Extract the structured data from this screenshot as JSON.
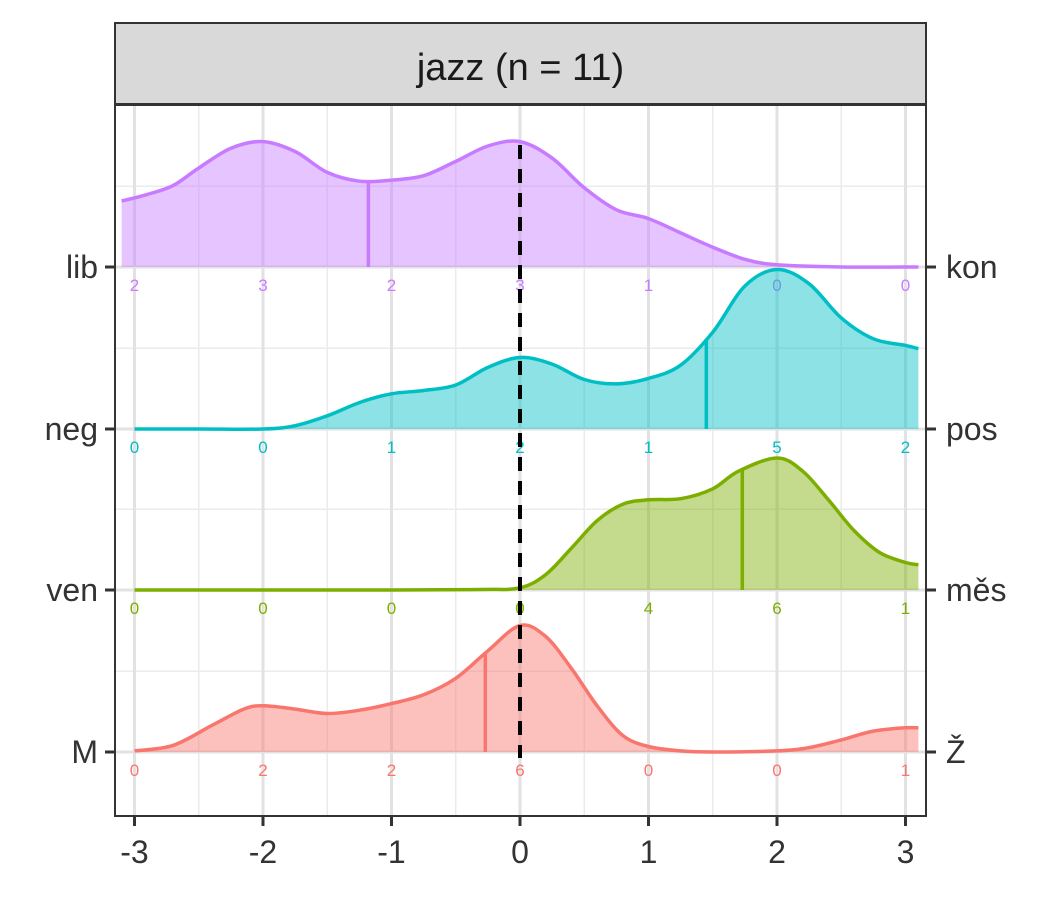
{
  "chart_data": {
    "type": "area",
    "facet_title": "jazz (n = 11)",
    "xlim": [
      -3.1,
      3.1
    ],
    "x_ticks": [
      "-3",
      "-2",
      "-1",
      "0",
      "1",
      "2",
      "3"
    ],
    "reference_line_x": 0,
    "grid": true,
    "count_positions": [
      -3,
      -2,
      -1,
      0,
      1,
      2,
      3
    ],
    "series": [
      {
        "left_label": "M",
        "right_label": "Ž",
        "color": "#F8766D",
        "mean_line": -0.27,
        "counts": [
          "0",
          "2",
          "2",
          "6",
          "0",
          "0",
          "1"
        ],
        "density": [
          [
            -3.0,
            0.01
          ],
          [
            -2.7,
            0.06
          ],
          [
            -2.4,
            0.24
          ],
          [
            -2.15,
            0.39
          ],
          [
            -2.0,
            0.42
          ],
          [
            -1.75,
            0.39
          ],
          [
            -1.5,
            0.35
          ],
          [
            -1.25,
            0.38
          ],
          [
            -1.0,
            0.44
          ],
          [
            -0.75,
            0.52
          ],
          [
            -0.5,
            0.67
          ],
          [
            -0.25,
            0.92
          ],
          [
            0.0,
            1.15
          ],
          [
            0.2,
            1.05
          ],
          [
            0.4,
            0.76
          ],
          [
            0.6,
            0.42
          ],
          [
            0.8,
            0.15
          ],
          [
            1.0,
            0.05
          ],
          [
            1.25,
            0.01
          ],
          [
            1.5,
            0.0
          ],
          [
            2.0,
            0.01
          ],
          [
            2.25,
            0.04
          ],
          [
            2.5,
            0.11
          ],
          [
            2.75,
            0.19
          ],
          [
            3.0,
            0.22
          ],
          [
            3.1,
            0.22
          ]
        ]
      },
      {
        "left_label": "ven",
        "right_label": "měs",
        "color": "#7CAE00",
        "mean_line": 1.73,
        "counts": [
          "0",
          "0",
          "0",
          "0",
          "4",
          "6",
          "1"
        ],
        "density": [
          [
            -3.0,
            0.0
          ],
          [
            -1.0,
            0.0
          ],
          [
            -0.3,
            0.005
          ],
          [
            0.0,
            0.02
          ],
          [
            0.2,
            0.14
          ],
          [
            0.4,
            0.38
          ],
          [
            0.6,
            0.63
          ],
          [
            0.8,
            0.78
          ],
          [
            1.0,
            0.82
          ],
          [
            1.25,
            0.83
          ],
          [
            1.5,
            0.92
          ],
          [
            1.7,
            1.08
          ],
          [
            2.0,
            1.2
          ],
          [
            2.2,
            1.08
          ],
          [
            2.4,
            0.82
          ],
          [
            2.6,
            0.54
          ],
          [
            2.8,
            0.34
          ],
          [
            3.0,
            0.25
          ],
          [
            3.1,
            0.23
          ]
        ]
      },
      {
        "left_label": "neg",
        "right_label": "pos",
        "color": "#00BFC4",
        "mean_line": 1.45,
        "counts": [
          "0",
          "0",
          "1",
          "2",
          "1",
          "5",
          "2"
        ],
        "density": [
          [
            -3.0,
            0.0
          ],
          [
            -2.5,
            0.0
          ],
          [
            -2.0,
            0.0
          ],
          [
            -1.75,
            0.03
          ],
          [
            -1.5,
            0.12
          ],
          [
            -1.25,
            0.24
          ],
          [
            -1.0,
            0.32
          ],
          [
            -0.75,
            0.35
          ],
          [
            -0.5,
            0.4
          ],
          [
            -0.25,
            0.56
          ],
          [
            0.0,
            0.65
          ],
          [
            0.25,
            0.59
          ],
          [
            0.5,
            0.45
          ],
          [
            0.75,
            0.41
          ],
          [
            1.0,
            0.46
          ],
          [
            1.25,
            0.58
          ],
          [
            1.5,
            0.88
          ],
          [
            1.75,
            1.3
          ],
          [
            2.0,
            1.45
          ],
          [
            2.25,
            1.32
          ],
          [
            2.5,
            1.01
          ],
          [
            2.75,
            0.82
          ],
          [
            3.0,
            0.76
          ],
          [
            3.1,
            0.73
          ]
        ]
      },
      {
        "left_label": "lib",
        "right_label": "kon",
        "color": "#C77CFF",
        "mean_line": -1.18,
        "counts": [
          "2",
          "3",
          "2",
          "3",
          "1",
          "0",
          "0"
        ],
        "density": [
          [
            -3.1,
            0.6
          ],
          [
            -2.9,
            0.66
          ],
          [
            -2.7,
            0.74
          ],
          [
            -2.5,
            0.9
          ],
          [
            -2.25,
            1.08
          ],
          [
            -2.0,
            1.14
          ],
          [
            -1.75,
            1.05
          ],
          [
            -1.5,
            0.86
          ],
          [
            -1.25,
            0.78
          ],
          [
            -1.0,
            0.79
          ],
          [
            -0.75,
            0.83
          ],
          [
            -0.5,
            0.96
          ],
          [
            -0.25,
            1.1
          ],
          [
            0.0,
            1.14
          ],
          [
            0.25,
            0.99
          ],
          [
            0.5,
            0.72
          ],
          [
            0.75,
            0.52
          ],
          [
            1.0,
            0.44
          ],
          [
            1.25,
            0.31
          ],
          [
            1.5,
            0.18
          ],
          [
            1.75,
            0.07
          ],
          [
            2.0,
            0.02
          ],
          [
            2.5,
            0.0
          ],
          [
            3.1,
            0.0
          ]
        ]
      }
    ]
  }
}
